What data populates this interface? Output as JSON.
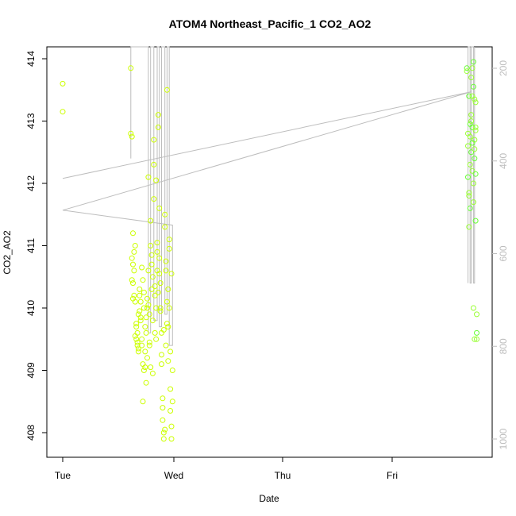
{
  "chart_data": {
    "type": "scatter",
    "title": "ATOM4 Northeast_Pacific_1 CO2_AO2",
    "xlabel": "Date",
    "ylabel": "CO2_AO2",
    "x_ticks": [
      "Tue",
      "Wed",
      "Thu",
      "Fri"
    ],
    "x_range_days": [
      -0.15,
      3.9
    ],
    "y_ticks": [
      408,
      409,
      410,
      411,
      412,
      413,
      414
    ],
    "ylim": [
      407.6,
      414.2
    ],
    "y2_ticks": [
      200,
      400,
      600,
      800,
      1000
    ],
    "y2lim": [
      1030,
      175
    ],
    "point_colors": [
      "#ccff00",
      "#99ff33",
      "#66ff33"
    ],
    "line_color": "#bdbdbd",
    "series": [
      {
        "kind": "points",
        "x": [
          0.0,
          0.0,
          0.62,
          0.62,
          0.63,
          0.63,
          0.64,
          0.64,
          0.64,
          0.65,
          0.65,
          0.66,
          0.66,
          0.67,
          0.67,
          0.68,
          0.68,
          0.69,
          0.69,
          0.7,
          0.7,
          0.71,
          0.71,
          0.72,
          0.72,
          0.73,
          0.73,
          0.74,
          0.74,
          0.75,
          0.75,
          0.76,
          0.76,
          0.77,
          0.77,
          0.78,
          0.78,
          0.79,
          0.79,
          0.8,
          0.8,
          0.81,
          0.81,
          0.82,
          0.82,
          0.83,
          0.83,
          0.84,
          0.84,
          0.85,
          0.85,
          0.86,
          0.86,
          0.87,
          0.87,
          0.88,
          0.88,
          0.89,
          0.89,
          0.9,
          0.9,
          0.91,
          0.91,
          0.92,
          0.92,
          0.93,
          0.93,
          0.94,
          0.94,
          0.95,
          0.95,
          0.96,
          0.96,
          0.97,
          0.97,
          0.98,
          0.98,
          0.99,
          0.99,
          1.0,
          1.0,
          0.63,
          0.64,
          0.66,
          0.68,
          0.7,
          0.72,
          0.74,
          0.76,
          0.78,
          0.8,
          0.82,
          0.84,
          0.86,
          0.88,
          0.9,
          0.92,
          0.94,
          0.96,
          0.98,
          0.65,
          0.67,
          0.69,
          0.71,
          0.73,
          0.75,
          0.77,
          0.79,
          0.81,
          0.83,
          0.85,
          0.87,
          0.89,
          0.91,
          0.93,
          0.95,
          0.97,
          0.99
        ],
        "y": [
          413.6,
          413.15,
          413.85,
          412.8,
          412.75,
          410.8,
          410.4,
          410.7,
          411.2,
          410.6,
          410.2,
          411.0,
          410.1,
          409.7,
          409.5,
          409.4,
          409.6,
          409.3,
          409.9,
          410.3,
          410.2,
          409.8,
          410.1,
          409.5,
          409.4,
          408.5,
          409.1,
          410.0,
          409.0,
          409.7,
          409.3,
          408.8,
          409.6,
          410.0,
          409.2,
          412.1,
          410.6,
          409.9,
          409.4,
          411.4,
          411.0,
          410.7,
          410.3,
          410.5,
          409.8,
          412.7,
          412.3,
          410.2,
          409.6,
          410.0,
          409.5,
          410.9,
          410.6,
          413.1,
          412.9,
          411.6,
          410.8,
          410.4,
          410.0,
          409.6,
          409.1,
          408.4,
          408.2,
          407.9,
          408.0,
          411.5,
          411.3,
          410.6,
          409.4,
          413.5,
          410.1,
          409.7,
          410.3,
          411.1,
          410.0,
          409.3,
          408.7,
          408.1,
          407.9,
          409.0,
          408.5,
          410.45,
          410.15,
          409.55,
          409.45,
          409.95,
          410.65,
          410.25,
          409.85,
          410.05,
          409.05,
          408.95,
          410.35,
          411.05,
          410.55,
          409.25,
          409.65,
          410.75,
          409.15,
          408.35,
          410.9,
          409.75,
          409.35,
          409.85,
          410.45,
          409.05,
          410.15,
          409.45,
          410.85,
          411.75,
          412.05,
          410.25,
          409.95,
          408.55,
          408.05,
          409.75,
          410.95,
          410.55
        ]
      },
      {
        "kind": "points",
        "x": [
          3.68,
          3.68,
          3.69,
          3.69,
          3.7,
          3.7,
          3.7,
          3.71,
          3.71,
          3.71,
          3.72,
          3.72,
          3.72,
          3.73,
          3.73,
          3.73,
          3.74,
          3.74,
          3.74,
          3.75,
          3.75,
          3.75,
          3.76,
          3.76,
          3.76,
          3.77,
          3.77,
          3.77,
          3.69,
          3.7,
          3.71,
          3.72,
          3.73,
          3.74,
          3.75,
          3.76,
          3.73,
          3.74,
          3.75,
          3.76
        ],
        "y": [
          413.85,
          413.8,
          412.8,
          412.1,
          411.85,
          411.3,
          413.4,
          412.75,
          412.3,
          411.6,
          413.7,
          413.1,
          412.5,
          413.85,
          413.4,
          412.9,
          412.0,
          411.7,
          413.55,
          413.35,
          412.7,
          412.4,
          413.3,
          412.9,
          411.4,
          409.5,
          409.9,
          409.6,
          412.6,
          411.8,
          412.95,
          413.0,
          412.2,
          413.95,
          412.55,
          412.85,
          412.65,
          410.0,
          409.5,
          412.15
        ]
      },
      {
        "kind": "line",
        "x": [
          0.0,
          3.72,
          0.0,
          1.0,
          1.0,
          0.97,
          0.97,
          0.95,
          0.95,
          0.93,
          0.93,
          0.9,
          0.9,
          0.88,
          0.88,
          0.86,
          0.86,
          0.83,
          0.83,
          0.8,
          0.8,
          0.78,
          0.78,
          0.62,
          0.62
        ],
        "y": [
          412.08,
          413.47,
          411.57,
          411.33,
          409.4,
          409.4,
          414.2,
          414.2,
          409.9,
          409.9,
          414.2,
          414.2,
          409.7,
          409.7,
          414.2,
          414.2,
          409.8,
          409.8,
          414.2,
          414.2,
          409.6,
          409.6,
          414.2,
          414.2,
          412.4
        ]
      },
      {
        "kind": "line",
        "x": [
          3.69,
          3.69,
          3.71,
          3.71,
          3.72,
          3.72,
          3.74,
          3.74,
          3.75,
          3.75
        ],
        "y": [
          410.4,
          414.2,
          414.2,
          410.4,
          410.4,
          414.2,
          414.2,
          410.4,
          410.4,
          414.2
        ]
      }
    ]
  }
}
